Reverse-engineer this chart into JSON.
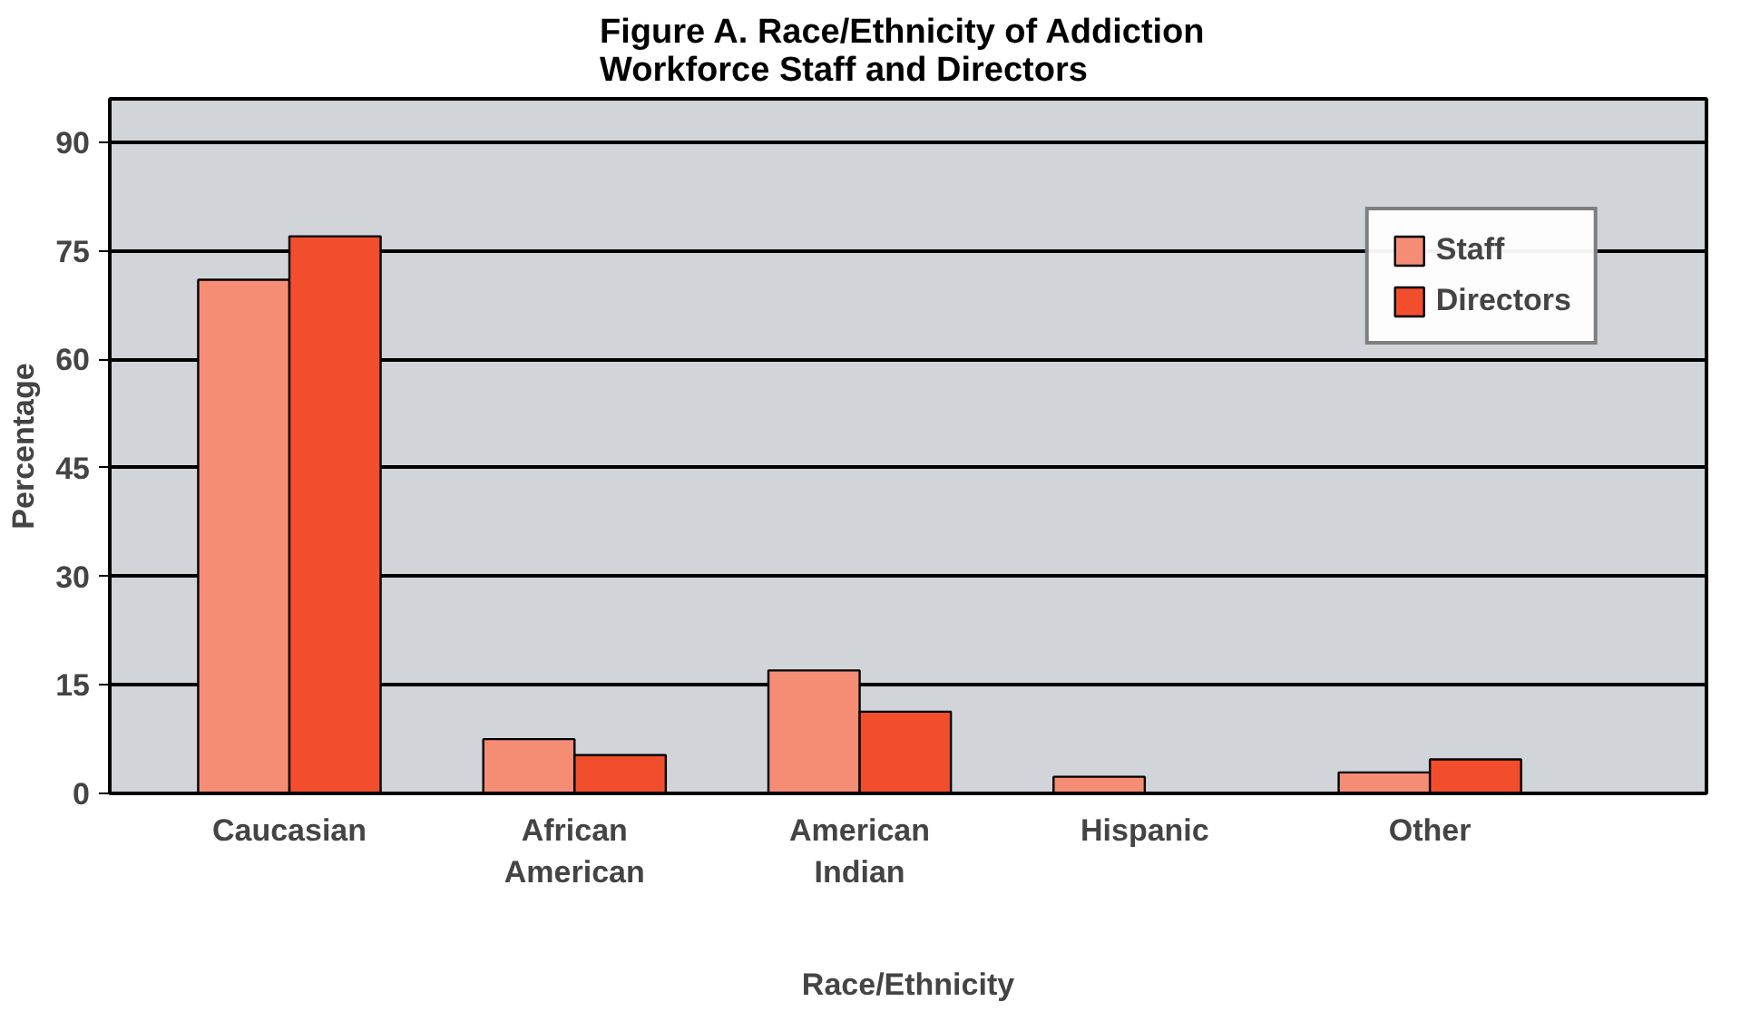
{
  "chart_data": {
    "type": "bar",
    "title": "Figure A.  Race/Ethnicity of Addiction\nWorkforce Staff and Directors",
    "xlabel": "Race/Ethnicity",
    "ylabel": "Percentage",
    "categories": [
      "Caucasian",
      "African American",
      "American Indian",
      "Hispanic",
      "Other"
    ],
    "series": [
      {
        "name": "Staff",
        "color": "#f58d75",
        "values": [
          71,
          7.5,
          17,
          2.3,
          2.9
        ]
      },
      {
        "name": "Directors",
        "color": "#f24e2e",
        "values": [
          77,
          5.3,
          11.3,
          null,
          4.7
        ]
      }
    ],
    "ylim": [
      0,
      96
    ],
    "yticks": [
      0,
      15,
      30,
      45,
      60,
      75,
      90
    ],
    "grid": "y",
    "legend": "top right"
  }
}
